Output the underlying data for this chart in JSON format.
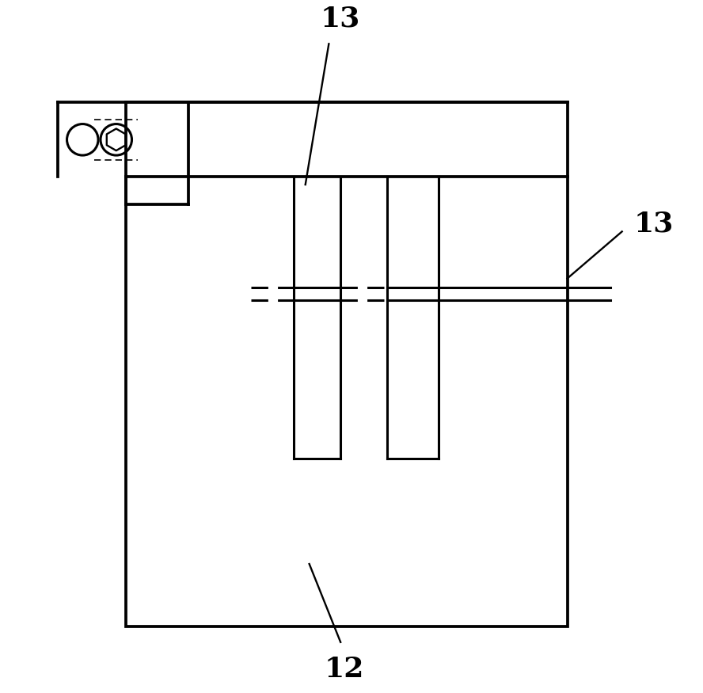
{
  "bg_color": "#ffffff",
  "line_color": "#000000",
  "lw": 2.2,
  "lw_thin": 1.2,
  "label_fontsize": 26,
  "label_fontsize_small": 22
}
